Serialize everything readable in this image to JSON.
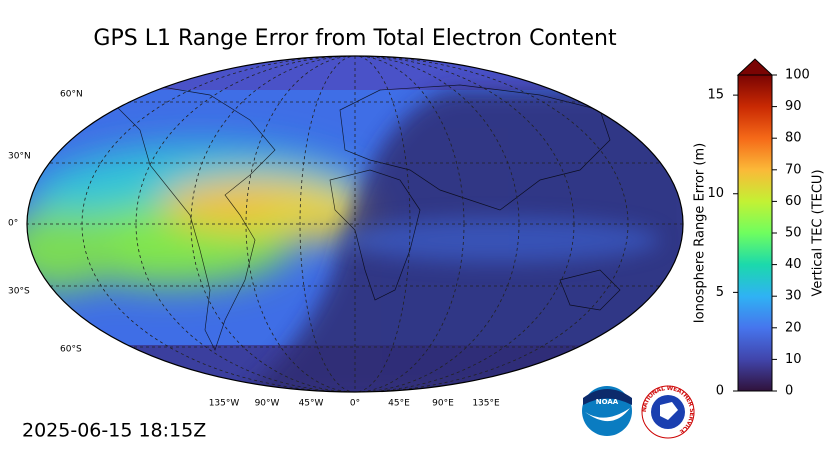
{
  "title": "GPS L1 Range Error from Total Electron Content",
  "timestamp": "2025-06-15 18:15Z",
  "map": {
    "lat_labels": [
      "60°N",
      "30°N",
      "0°",
      "30°S",
      "60°S"
    ],
    "lon_labels": [
      "135°W",
      "90°W",
      "45°W",
      "0°",
      "45°E",
      "90°E",
      "135°E"
    ]
  },
  "colorbar": {
    "label": "Vertical TEC (TECU)",
    "ylim": [
      0,
      100
    ],
    "yticks": [
      0,
      10,
      20,
      30,
      40,
      50,
      60,
      70,
      80,
      90,
      100
    ],
    "y2label": "Ionosphere Range Error (m)",
    "y2lim": [
      0,
      16.02
    ],
    "y2ticks": [
      0,
      5,
      10,
      15
    ]
  },
  "logos": {
    "noaa": "NOAA",
    "nws": "NATIONAL WEATHER SERVICE"
  }
}
